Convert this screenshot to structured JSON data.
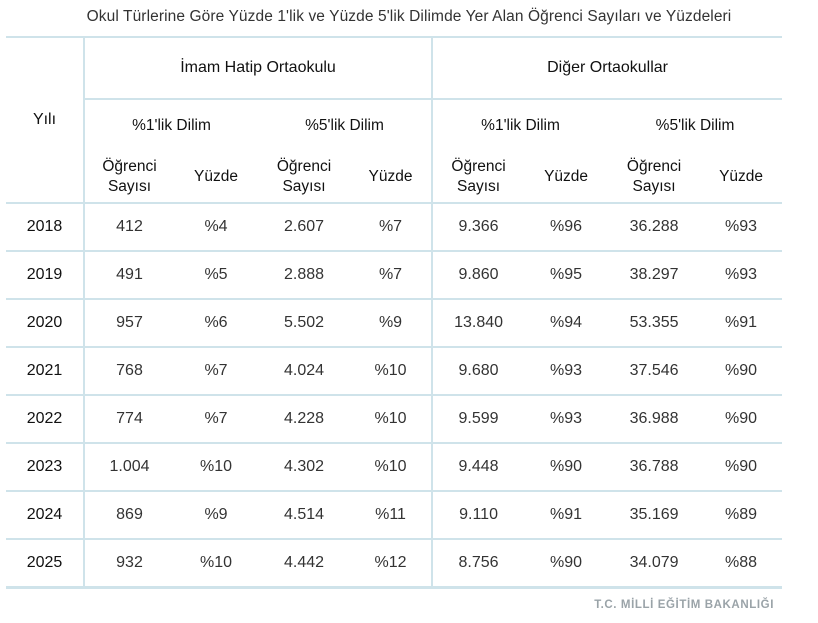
{
  "title": "Okul Türlerine Göre Yüzde 1'lik ve Yüzde 5'lik Dilimde Yer Alan Öğrenci Sayıları ve Yüzdeleri",
  "table": {
    "year_header": "Yılı",
    "groups": [
      "İmam Hatip Ortaokulu",
      "Diğer Ortaokullar"
    ],
    "subgroups": [
      "%1'lik Dilim",
      "%5'lik Dilim",
      "%1'lik Dilim",
      "%5'lik Dilim"
    ],
    "col_count_label_line1": "Öğrenci",
    "col_count_label_line2": "Sayısı",
    "col_percent_label": "Yüzde",
    "rows": [
      {
        "year": "2018",
        "c": [
          "412",
          "%4",
          "2.607",
          "%7",
          "9.366",
          "%96",
          "36.288",
          "%93"
        ]
      },
      {
        "year": "2019",
        "c": [
          "491",
          "%5",
          "2.888",
          "%7",
          "9.860",
          "%95",
          "38.297",
          "%93"
        ]
      },
      {
        "year": "2020",
        "c": [
          "957",
          "%6",
          "5.502",
          "%9",
          "13.840",
          "%94",
          "53.355",
          "%91"
        ]
      },
      {
        "year": "2021",
        "c": [
          "768",
          "%7",
          "4.024",
          "%10",
          "9.680",
          "%93",
          "37.546",
          "%90"
        ]
      },
      {
        "year": "2022",
        "c": [
          "774",
          "%7",
          "4.228",
          "%10",
          "9.599",
          "%93",
          "36.988",
          "%90"
        ]
      },
      {
        "year": "2023",
        "c": [
          "1.004",
          "%10",
          "4.302",
          "%10",
          "9.448",
          "%90",
          "36.788",
          "%90"
        ]
      },
      {
        "year": "2024",
        "c": [
          "869",
          "%9",
          "4.514",
          "%11",
          "9.110",
          "%91",
          "35.169",
          "%89"
        ]
      },
      {
        "year": "2025",
        "c": [
          "932",
          "%10",
          "4.442",
          "%12",
          "8.756",
          "%90",
          "34.079",
          "%88"
        ]
      }
    ]
  },
  "source": "T.C. MİLLİ EĞİTİM BAKANLIĞI",
  "colors": {
    "border": "#cfe3ea",
    "source_text": "#9aa3a8"
  }
}
